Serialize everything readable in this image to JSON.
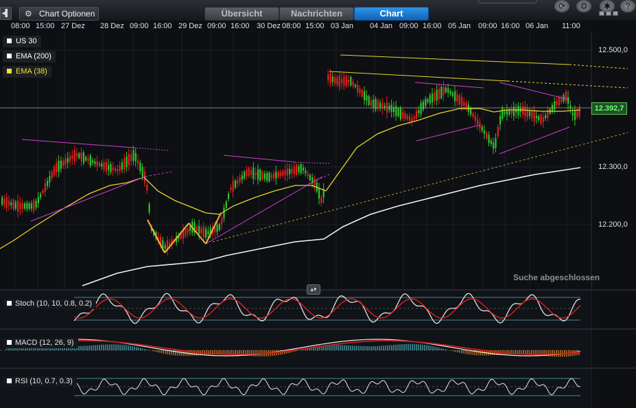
{
  "toolbar": {
    "collapse_icon": "collapse-left-icon",
    "options_label": "Chart Optionen",
    "options_icon": "gear-icon",
    "tabs": [
      {
        "label": "Übersicht",
        "active": false
      },
      {
        "label": "Nachrichten",
        "active": false
      },
      {
        "label": "Chart",
        "active": true
      }
    ],
    "right_icons": [
      "refresh-icon",
      "settings-icon",
      "tools-icon",
      "help-icon"
    ]
  },
  "time_axis": [
    "08:00",
    "15:00",
    "27 Dez",
    "28 Dez",
    "09:00",
    "16:00",
    "29 Dez",
    "09:00",
    "16:00",
    "30 Dez",
    "08:00",
    "15:00",
    "03 Jan",
    "04 Jan",
    "09:00",
    "16:00",
    "05 Jan",
    "09:00",
    "16:00",
    "06 Jan",
    "11:00"
  ],
  "legend": [
    {
      "label": "US 30",
      "color": "#ffffff"
    },
    {
      "label": "EMA (200)",
      "color": "#ffffff"
    },
    {
      "label": "EMA (38)",
      "color": "#f2e233"
    }
  ],
  "price_axis": [
    "12.500,0",
    "12.300,0",
    "12.200,0"
  ],
  "last_price": "12.392,7",
  "status_text": "Suche abgeschlossen",
  "indicators": {
    "stoch": "Stoch (10, 10, 0.8, 0.2)",
    "macd": "MACD (12, 26, 9)",
    "rsi": "RSI (10, 0.7, 0.3)"
  },
  "colors": {
    "up_candle": "#31c431",
    "down_candle": "#e02020",
    "ema38": "#f2e233",
    "ema200": "#ffffff",
    "trendline": "#d23fd6",
    "accent_tab": "#1a7fd4"
  }
}
